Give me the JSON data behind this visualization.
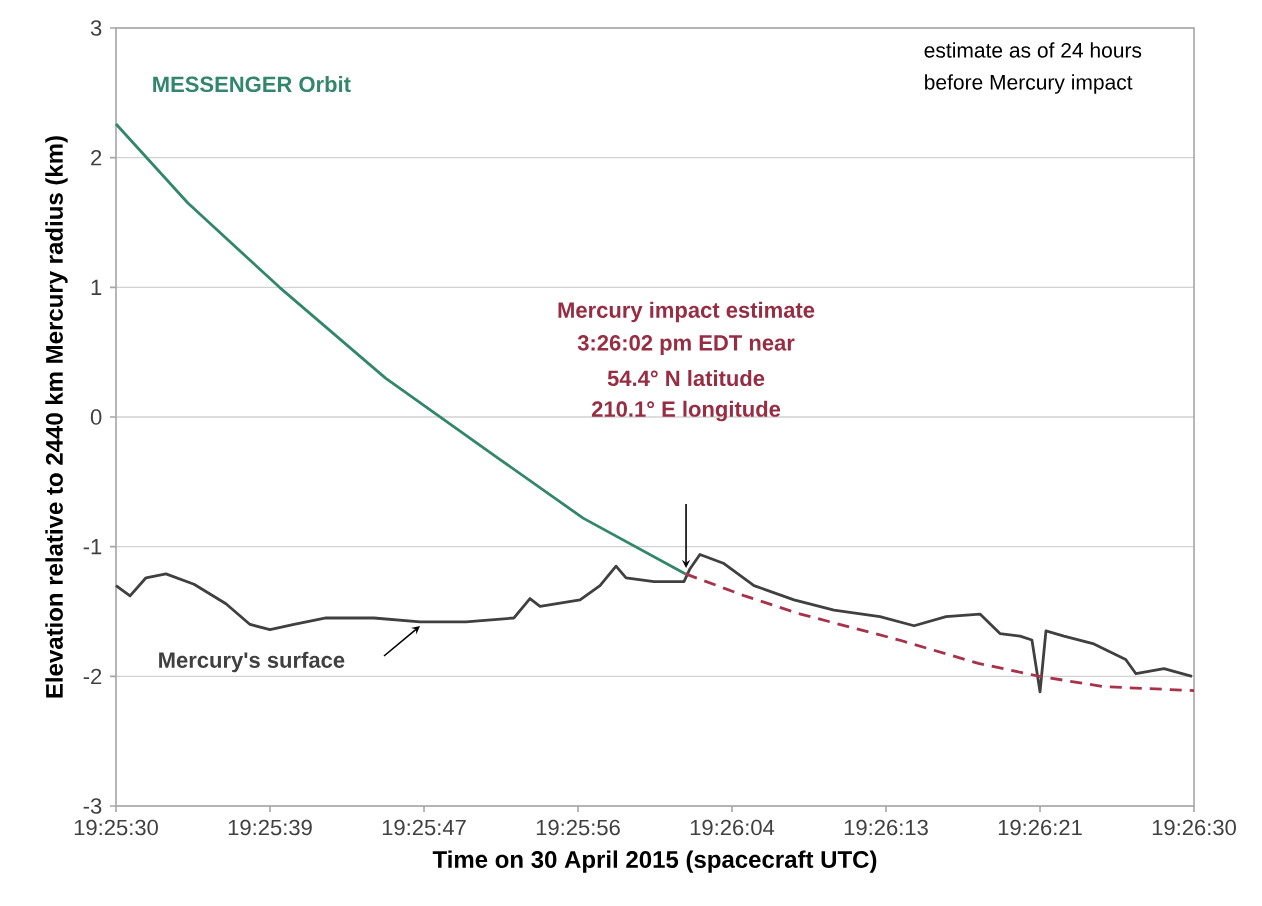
{
  "chart_data": {
    "type": "line",
    "xlabel": "Time on 30 April 2015 (spacecraft UTC)",
    "ylabel": "Elevation relative to 2440 km Mercury radius (km)",
    "xlim": [
      19.425,
      19.441667
    ],
    "ylim": [
      -3,
      3
    ],
    "xticks": [
      {
        "value": 19.425,
        "label": "19:25:30"
      },
      {
        "value": 19.427381,
        "label": "19:25:39"
      },
      {
        "value": 19.429762,
        "label": "19:25:47"
      },
      {
        "value": 19.432143,
        "label": "19:25:56"
      },
      {
        "value": 19.434524,
        "label": "19:26:04"
      },
      {
        "value": 19.436905,
        "label": "19:26:13"
      },
      {
        "value": 19.439286,
        "label": "19:26:21"
      },
      {
        "value": 19.441667,
        "label": "19:26:30"
      }
    ],
    "yticks": [
      -3,
      -2,
      -1,
      0,
      1,
      2,
      3
    ],
    "grid": "y",
    "marker": "none",
    "series": [
      {
        "name": "MESSENGER Orbit",
        "color": "#31866b",
        "x": [
          19.425,
          19.426111,
          19.427528,
          19.429167,
          19.430944,
          19.432222,
          19.433806
        ],
        "values": [
          2.26,
          1.65,
          1.0,
          0.3,
          -0.33,
          -0.78,
          -1.21
        ]
      },
      {
        "name": "Mercury's surface",
        "color": "#404040",
        "x": [
          19.425,
          19.425217,
          19.425464,
          19.425772,
          19.426206,
          19.4267,
          19.427072,
          19.427381,
          19.427753,
          19.428247,
          19.428989,
          19.4297,
          19.430411,
          19.431153,
          19.4314,
          19.431556,
          19.432175,
          19.432483,
          19.432731,
          19.432886,
          19.433317,
          19.433781,
          19.433875,
          19.434028,
          19.4344,
          19.434864,
          19.435483,
          19.4361,
          19.436811,
          19.437339,
          19.437833,
          19.438358,
          19.438667,
          19.438978,
          19.439161,
          19.439286,
          19.439378,
          19.439656,
          19.440119,
          19.440611,
          19.440769,
          19.441203,
          19.441636
        ],
        "values": [
          -1.3,
          -1.38,
          -1.24,
          -1.21,
          -1.29,
          -1.44,
          -1.6,
          -1.64,
          -1.6,
          -1.55,
          -1.55,
          -1.58,
          -1.58,
          -1.55,
          -1.4,
          -1.46,
          -1.41,
          -1.3,
          -1.15,
          -1.24,
          -1.27,
          -1.27,
          -1.17,
          -1.06,
          -1.13,
          -1.3,
          -1.41,
          -1.49,
          -1.54,
          -1.61,
          -1.54,
          -1.52,
          -1.67,
          -1.69,
          -1.72,
          -2.12,
          -1.65,
          -1.69,
          -1.75,
          -1.87,
          -1.98,
          -1.94,
          -2.0
        ]
      },
      {
        "color": "#a8324a",
        "line_style": "dashed",
        "x": [
          19.433806,
          19.434722,
          19.435583,
          19.437111,
          19.438333,
          19.439278,
          19.440278,
          19.441667
        ],
        "values": [
          -1.21,
          -1.38,
          -1.52,
          -1.72,
          -1.9,
          -2.0,
          -2.08,
          -2.11
        ]
      }
    ],
    "annotations": [
      "estimate as of 24 hours",
      "before Mercury impact",
      "Mercury impact estimate",
      "3:26:02 pm EDT near",
      "54.4° N latitude",
      "210.1° E longitude"
    ]
  }
}
